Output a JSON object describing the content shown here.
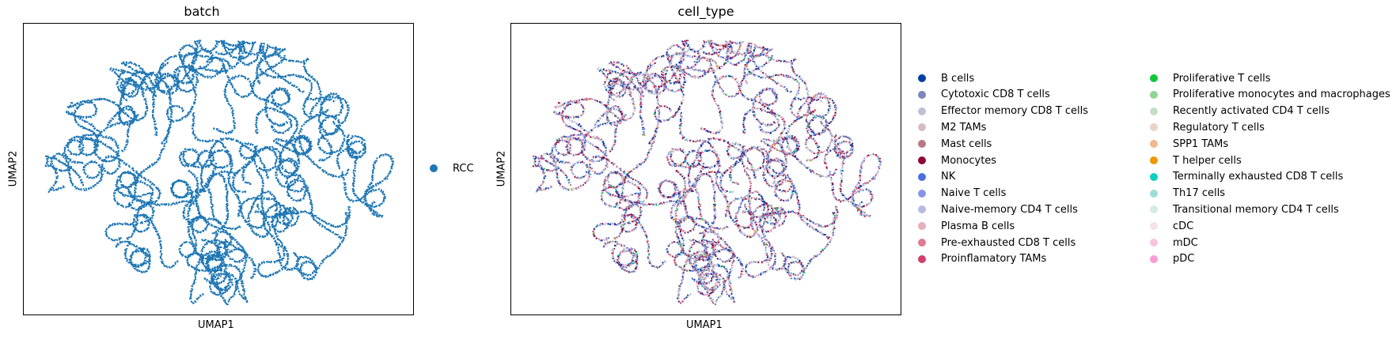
{
  "chart_data": [
    {
      "type": "scatter",
      "title": "batch",
      "xlabel": "UMAP1",
      "ylabel": "UMAP2",
      "grid": false,
      "legend_placement": "right",
      "series": [
        {
          "name": "RCC",
          "color": "#1f77b4"
        }
      ]
    },
    {
      "type": "scatter",
      "title": "cell_type",
      "xlabel": "UMAP1",
      "ylabel": "UMAP2",
      "grid": false,
      "legend_placement": "right",
      "legend_columns": 2,
      "series": [
        {
          "name": "B cells",
          "color": "#023fa5"
        },
        {
          "name": "Cytotoxic CD8 T cells",
          "color": "#7d87b9"
        },
        {
          "name": "Effector memory CD8 T cells",
          "color": "#bec1d4"
        },
        {
          "name": "M2 TAMs",
          "color": "#d6bcc0"
        },
        {
          "name": "Mast cells",
          "color": "#bb7784"
        },
        {
          "name": "Monocytes",
          "color": "#8e063b"
        },
        {
          "name": "NK",
          "color": "#4a6fe3"
        },
        {
          "name": "Naive T cells",
          "color": "#8595e1"
        },
        {
          "name": "Naive-memory CD4 T cells",
          "color": "#b5bbe3"
        },
        {
          "name": "Plasma B cells",
          "color": "#e6afb9"
        },
        {
          "name": "Pre-exhausted CD8 T cells",
          "color": "#e07b91"
        },
        {
          "name": "Proinflamatory TAMs",
          "color": "#d33f6a"
        },
        {
          "name": "Proliferative T cells",
          "color": "#11c638"
        },
        {
          "name": "Proliferative monocytes and macrophages",
          "color": "#8dd593"
        },
        {
          "name": "Recently activated CD4 T cells",
          "color": "#c6dec7"
        },
        {
          "name": "Regulatory T cells",
          "color": "#ead3c6"
        },
        {
          "name": "SPP1 TAMs",
          "color": "#f0b98d"
        },
        {
          "name": "T helper cells",
          "color": "#ef9708"
        },
        {
          "name": "Terminally exhausted CD8 T cells",
          "color": "#0fcfc0"
        },
        {
          "name": "Th17 cells",
          "color": "#9cded6"
        },
        {
          "name": "Transitional memory CD4 T cells",
          "color": "#d5eae7"
        },
        {
          "name": "cDC",
          "color": "#f3e1eb"
        },
        {
          "name": "mDC",
          "color": "#f6c4e1"
        },
        {
          "name": "pDC",
          "color": "#f79cd4"
        }
      ]
    }
  ]
}
